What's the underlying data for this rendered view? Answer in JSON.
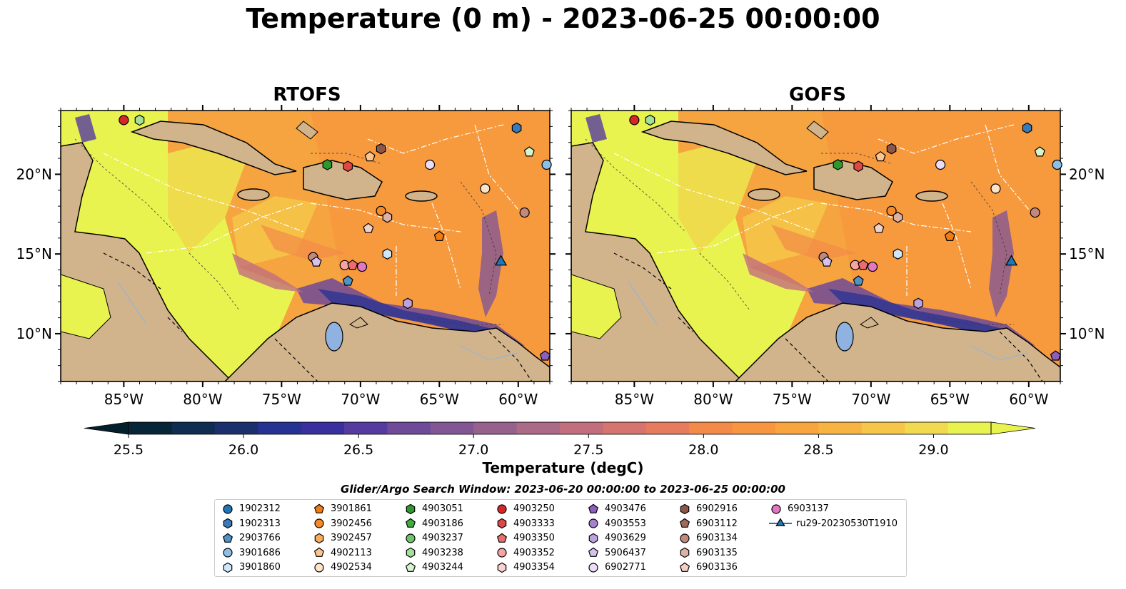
{
  "figure": {
    "title": "Temperature (0 m) - 2023-06-25 00:00:00"
  },
  "panels": [
    {
      "title": "RTOFS"
    },
    {
      "title": "GOFS"
    }
  ],
  "colorbar": {
    "label": "Temperature (degC)",
    "ticks": [
      "25.5",
      "26.0",
      "26.5",
      "27.0",
      "27.5",
      "28.0",
      "28.5",
      "29.0"
    ],
    "colors": [
      "#062637",
      "#0f2d50",
      "#1b2f6d",
      "#263293",
      "#3a2f9e",
      "#553aa0",
      "#6e4a98",
      "#825694",
      "#97618e",
      "#ab6a87",
      "#c26e7d",
      "#d6746f",
      "#e67c5d",
      "#f48a48",
      "#f79540",
      "#f8a43f",
      "#f7b443",
      "#f6c64a",
      "#f1da50",
      "#e9f34f"
    ]
  },
  "legend": {
    "title": "Glider/Argo Search Window: 2023-06-20 00:00:00 to 2023-06-25 00:00:00",
    "items": [
      {
        "label": "1902312",
        "marker": "circle",
        "color": "#1f77b4"
      },
      {
        "label": "1902313",
        "marker": "hexagon",
        "color": "#3a7ab8"
      },
      {
        "label": "2903766",
        "marker": "pentagon",
        "color": "#4f93c9"
      },
      {
        "label": "3901686",
        "marker": "circle",
        "color": "#8cbfe6"
      },
      {
        "label": "3901860",
        "marker": "hexagon",
        "color": "#cfe7fb"
      },
      {
        "label": "3901861",
        "marker": "pentagon",
        "color": "#f07c12"
      },
      {
        "label": "3902456",
        "marker": "circle",
        "color": "#f58a2a"
      },
      {
        "label": "3902457",
        "marker": "hexagon",
        "color": "#fbab5b"
      },
      {
        "label": "4902113",
        "marker": "pentagon",
        "color": "#fcc48f"
      },
      {
        "label": "4902534",
        "marker": "circle",
        "color": "#fde4c9"
      },
      {
        "label": "4903051",
        "marker": "hexagon",
        "color": "#2b9a2b"
      },
      {
        "label": "4903186",
        "marker": "pentagon",
        "color": "#3fae3f"
      },
      {
        "label": "4903237",
        "marker": "circle",
        "color": "#6cc56c"
      },
      {
        "label": "4903238",
        "marker": "hexagon",
        "color": "#a4e09a"
      },
      {
        "label": "4903244",
        "marker": "pentagon",
        "color": "#d6f5cc"
      },
      {
        "label": "4903250",
        "marker": "circle",
        "color": "#d62728"
      },
      {
        "label": "4903333",
        "marker": "hexagon",
        "color": "#e04848"
      },
      {
        "label": "4903350",
        "marker": "pentagon",
        "color": "#ec6d6d"
      },
      {
        "label": "4903352",
        "marker": "circle",
        "color": "#f6a3a3"
      },
      {
        "label": "4903354",
        "marker": "hexagon",
        "color": "#fcd2d0"
      },
      {
        "label": "4903476",
        "marker": "pentagon",
        "color": "#8c5fbd"
      },
      {
        "label": "4903553",
        "marker": "circle",
        "color": "#a582cf"
      },
      {
        "label": "4903629",
        "marker": "hexagon",
        "color": "#bca2de"
      },
      {
        "label": "5906437",
        "marker": "pentagon",
        "color": "#d4c2ec"
      },
      {
        "label": "6902771",
        "marker": "circle",
        "color": "#ecdcf7"
      },
      {
        "label": "6902916",
        "marker": "hexagon",
        "color": "#8c564b"
      },
      {
        "label": "6903112",
        "marker": "pentagon",
        "color": "#a06a5d"
      },
      {
        "label": "6903134",
        "marker": "circle",
        "color": "#c2887b"
      },
      {
        "label": "6903135",
        "marker": "hexagon",
        "color": "#ddb1a4"
      },
      {
        "label": "6903136",
        "marker": "pentagon",
        "color": "#f2d0c6"
      },
      {
        "label": "6903137",
        "marker": "circle",
        "color": "#e377c2"
      },
      {
        "label": "ru29-20230530T1910",
        "marker": "triangle",
        "color": "#1f77b4"
      }
    ]
  },
  "chart_data": {
    "type": "heatmap",
    "description_kind": "map",
    "variable": "Temperature (0 m)",
    "units": "degC",
    "lon_ticks": [
      "85°W",
      "80°W",
      "75°W",
      "70°W",
      "65°W",
      "60°W"
    ],
    "lon_values": [
      -85,
      -80,
      -75,
      -70,
      -65,
      -60
    ],
    "lat_ticks": [
      "10°N",
      "15°N",
      "20°N"
    ],
    "lat_values": [
      10,
      15,
      20
    ],
    "lon_range": [
      -89,
      -58
    ],
    "lat_range": [
      7,
      24
    ],
    "color_range": [
      25.5,
      29.25
    ],
    "panels": [
      "RTOFS",
      "GOFS"
    ],
    "floats": [
      {
        "id": "4903250",
        "lon": -85.0,
        "lat": 23.4
      },
      {
        "id": "4903238",
        "lon": -84.0,
        "lat": 23.4
      },
      {
        "id": "1902313",
        "lon": -60.1,
        "lat": 22.9
      },
      {
        "id": "4903244",
        "lon": -59.3,
        "lat": 21.4
      },
      {
        "id": "3901686",
        "lon": -58.2,
        "lat": 20.6
      },
      {
        "id": "6902916",
        "lon": -68.7,
        "lat": 21.6
      },
      {
        "id": "4902113",
        "lon": -69.4,
        "lat": 21.1
      },
      {
        "id": "4903051",
        "lon": -72.1,
        "lat": 20.6
      },
      {
        "id": "4903333",
        "lon": -70.8,
        "lat": 20.5
      },
      {
        "id": "6902771",
        "lon": -65.6,
        "lat": 20.6
      },
      {
        "id": "4902534",
        "lon": -62.1,
        "lat": 19.1
      },
      {
        "id": "6903134",
        "lon": -59.6,
        "lat": 17.6
      },
      {
        "id": "3902456",
        "lon": -68.7,
        "lat": 17.7
      },
      {
        "id": "6903135",
        "lon": -68.3,
        "lat": 17.3
      },
      {
        "id": "6903136",
        "lon": -69.5,
        "lat": 16.6
      },
      {
        "id": "3901861",
        "lon": -65.0,
        "lat": 16.1
      },
      {
        "id": "6903134",
        "lon": -73.0,
        "lat": 14.8
      },
      {
        "id": "5906437",
        "lon": -72.8,
        "lat": 14.5
      },
      {
        "id": "3901860",
        "lon": -68.3,
        "lat": 15.0
      },
      {
        "id": "4903352",
        "lon": -71.0,
        "lat": 14.3
      },
      {
        "id": "4903350",
        "lon": -70.5,
        "lat": 14.3
      },
      {
        "id": "6903137",
        "lon": -69.9,
        "lat": 14.2
      },
      {
        "id": "2903766",
        "lon": -70.8,
        "lat": 13.3
      },
      {
        "id": "4903629",
        "lon": -67.0,
        "lat": 11.9
      },
      {
        "id": "4903476",
        "lon": -58.3,
        "lat": 8.6
      },
      {
        "id": "ru29-20230530T1910",
        "lon": -61.1,
        "lat": 14.5
      }
    ]
  }
}
